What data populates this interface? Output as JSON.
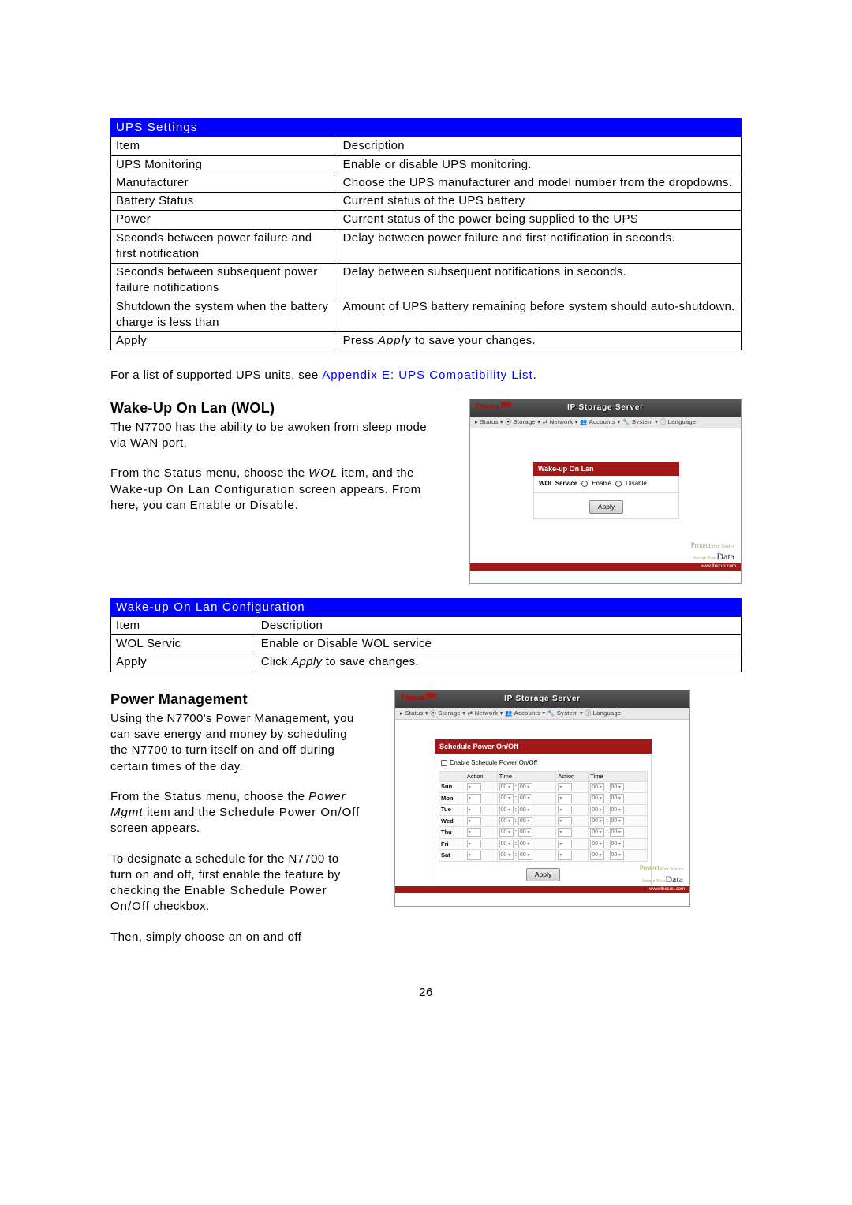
{
  "ups_table": {
    "header": "UPS Settings",
    "col1": "Item",
    "col2": "Description",
    "rows": [
      {
        "item": "UPS Monitoring",
        "desc": "Enable or disable UPS monitoring."
      },
      {
        "item": "Manufacturer",
        "desc": "Choose the UPS manufacturer and model number from the dropdowns."
      },
      {
        "item": "Battery Status",
        "desc": "Current status of the UPS battery"
      },
      {
        "item": "Power",
        "desc": "Current status of the power being supplied to the UPS"
      },
      {
        "item": "Seconds between power failure and first notification",
        "desc": "Delay between power failure and first notification in seconds."
      },
      {
        "item": "Seconds between subsequent power failure notifications",
        "desc": "Delay between subsequent notifications in seconds."
      },
      {
        "item": "Shutdown the system when the battery charge is less than",
        "desc": "Amount of UPS battery remaining before system should auto-shutdown."
      },
      {
        "item": "Apply",
        "desc_prefix": "Press ",
        "desc_bold": "Apply",
        "desc_suffix": " to save your changes."
      }
    ]
  },
  "appendix_line": {
    "prefix": "For a list of supported UPS units, see ",
    "link": "Appendix E: UPS Compatibility List",
    "suffix": "."
  },
  "wol": {
    "heading": "Wake-Up On Lan (WOL)",
    "p1": "The N7700 has the ability to be awoken from sleep mode via WAN port.",
    "p2a": "From the ",
    "p2b": "Status",
    "p2c": " menu, choose the ",
    "p2d": "WOL",
    "p2e": " item, and the ",
    "p2f": "Wake-up On Lan Configuration",
    "p2g": " screen appears. From here, you can ",
    "p2h": "Enable",
    "p2i": " or ",
    "p2j": "Disable",
    "p2k": "."
  },
  "wol_shot": {
    "brand": "Thecus",
    "title": "IP Storage Server",
    "menu": "▸ Status ▾   ⦿ Storage ▾   ⇄ Network ▾   👥 Accounts ▾   🔧 System ▾   ⓘ Language",
    "panel_title": "Wake-up On Lan",
    "row_label": "WOL Service",
    "opt1": "Enable",
    "opt2": "Disable",
    "apply": "Apply",
    "protect1": "Protect",
    "protect2": "Your Source",
    "protect3": "Secure Your",
    "protect4": "Data",
    "footer": "www.thecus.com"
  },
  "wol_table": {
    "header": "Wake-up On Lan Configuration",
    "col1": "Item",
    "col2": "Description",
    "rows": [
      {
        "item": "WOL Servic",
        "desc": "Enable or Disable WOL service"
      },
      {
        "item": "Apply",
        "desc_prefix": "Click ",
        "desc_bold": "Apply",
        "desc_suffix": " to save changes."
      }
    ]
  },
  "pm": {
    "heading": "Power Management",
    "p1": "Using the N7700's Power Management, you can save energy and money by scheduling the N7700 to turn itself on and off during certain times of the day.",
    "p2a": "From the ",
    "p2b": "Status",
    "p2c": " menu, choose the ",
    "p2d": "Power Mgmt",
    "p2e": " item and the ",
    "p2f": "Schedule Power On/Off",
    "p2g": " screen appears.",
    "p3a": "To designate a schedule for the N7700 to turn on and off, first enable the feature by checking the ",
    "p3b": "Enable Schedule Power On/Off",
    "p3c": " checkbox.",
    "p4": "Then, simply choose an on and off"
  },
  "pm_shot": {
    "brand": "Thecus",
    "title": "IP Storage Server",
    "menu": "▸ Status ▾   ⦿ Storage ▾   ⇄ Network ▾   👥 Accounts ▾   🔧 System ▾   ⓘ Language",
    "panel_title": "Schedule Power On/Off",
    "checkbox_label": "Enable Schedule Power On/Off",
    "cols": [
      "",
      "Action",
      "Time",
      "Action",
      "Time"
    ],
    "days": [
      "Sun",
      "Mon",
      "Tue",
      "Wed",
      "Thu",
      "Fri",
      "Sat"
    ],
    "cell_action": " ",
    "cell_h": "00",
    "cell_sep": ":",
    "cell_m": "00",
    "apply": "Apply",
    "protect1": "Protect",
    "protect2": "Your Source",
    "protect3": "Secure Your",
    "protect4": "Data",
    "footer": "www.thecus.com"
  },
  "page_number": "26",
  "colors": {
    "table_header_bg": "#0000ff",
    "table_header_fg": "#ffffff",
    "link": "#0000ff",
    "panel_red": "#a01818"
  }
}
